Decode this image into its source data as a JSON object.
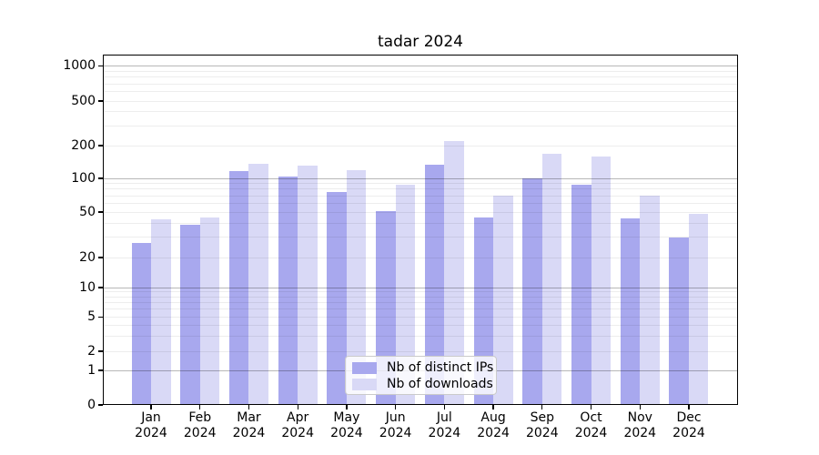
{
  "title": "tadar 2024",
  "chart_data": {
    "type": "bar",
    "title": "tadar 2024",
    "months": [
      "Jan",
      "Feb",
      "Mar",
      "Apr",
      "May",
      "Jun",
      "Jul",
      "Aug",
      "Sep",
      "Oct",
      "Nov",
      "Dec"
    ],
    "year_label": "2024",
    "categories": [
      "Jan 2024",
      "Feb 2024",
      "Mar 2024",
      "Apr 2024",
      "May 2024",
      "Jun 2024",
      "Jul 2024",
      "Aug 2024",
      "Sep 2024",
      "Oct 2024",
      "Nov 2024",
      "Dec 2024"
    ],
    "series": [
      {
        "name": "Nb of distinct IPs",
        "color": "#a8a8ee",
        "values": [
          27,
          39,
          117,
          103,
          75,
          51,
          134,
          45,
          100,
          88,
          44,
          30
        ]
      },
      {
        "name": "Nb of downloads",
        "color": "#d9d9f6",
        "values": [
          43,
          45,
          136,
          132,
          120,
          88,
          220,
          70,
          168,
          158,
          70,
          48
        ]
      }
    ],
    "yscale": "symlog",
    "yticks": [
      0,
      1,
      2,
      5,
      10,
      20,
      50,
      100,
      200,
      500,
      1000
    ],
    "ylim": [
      0,
      1300
    ],
    "grid": true,
    "grid_over_bars": true,
    "legend_position": "lower center"
  }
}
